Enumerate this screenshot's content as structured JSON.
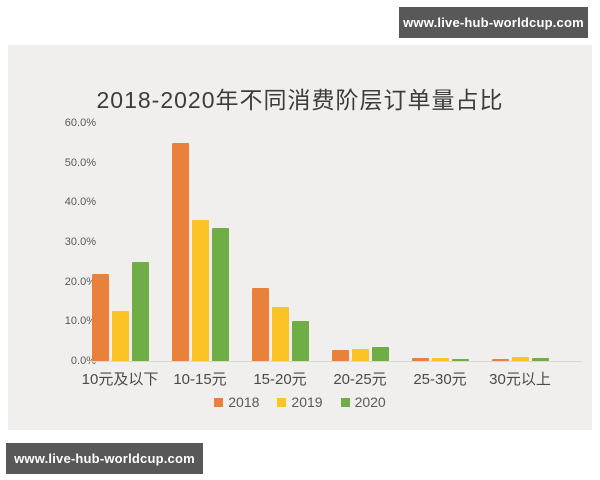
{
  "watermark": {
    "text": "www.live-hub-worldcup.com"
  },
  "chart_data": {
    "type": "bar",
    "title": "2018-2020年不同消费阶层订单量占比",
    "categories": [
      "10元及以下",
      "10-15元",
      "15-20元",
      "20-25元",
      "25-30元",
      "30元以上"
    ],
    "series": [
      {
        "name": "2018",
        "color": "#e8813c",
        "values": [
          22.0,
          55.0,
          18.5,
          2.8,
          0.7,
          0.6
        ]
      },
      {
        "name": "2019",
        "color": "#fcc327",
        "values": [
          12.5,
          35.5,
          13.5,
          3.0,
          0.7,
          0.9
        ]
      },
      {
        "name": "2020",
        "color": "#70ad47",
        "values": [
          25.0,
          33.5,
          10.0,
          3.5,
          0.6,
          0.8
        ]
      }
    ],
    "xlabel": "",
    "ylabel": "",
    "ylim": [
      0,
      60
    ],
    "yticks": [
      "60.0%",
      "50.0%",
      "40.0%",
      "30.0%",
      "20.0%",
      "10.0%",
      "0.0%"
    ],
    "legend_position": "bottom",
    "grid": false,
    "panel_background": "#f0efed"
  }
}
